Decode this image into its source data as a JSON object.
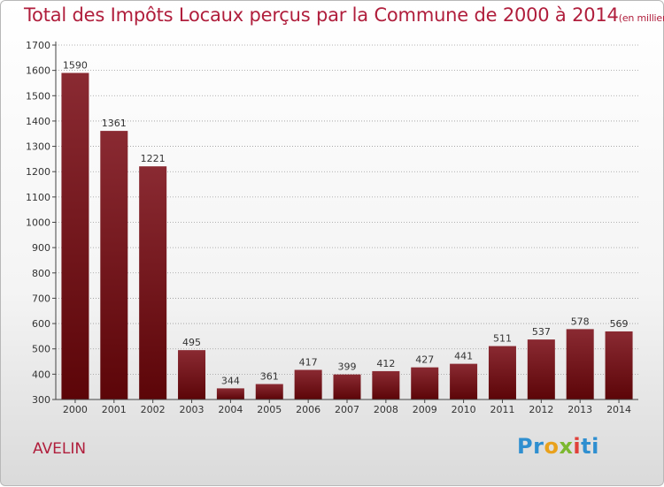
{
  "header": {
    "title": "Total des Impôts Locaux perçus par la Commune de 2000 à 2014",
    "unit": "(en milliers d'€)"
  },
  "footer": {
    "commune": "AVELIN",
    "brand_parts": [
      "Pr",
      "o",
      "x",
      "i",
      "ti"
    ]
  },
  "colors": {
    "accent": "#b01e3c",
    "bar_top": "#8a2a32",
    "bar_bottom": "#5c0508"
  },
  "chart_data": {
    "type": "bar",
    "title": "Total des Impôts Locaux perçus par la Commune de 2000 à 2014",
    "ylabel": "en milliers d'€",
    "xlabel": "",
    "categories": [
      "2000",
      "2001",
      "2002",
      "2003",
      "2004",
      "2005",
      "2006",
      "2007",
      "2008",
      "2009",
      "2010",
      "2011",
      "2012",
      "2013",
      "2014"
    ],
    "values": [
      1590,
      1361,
      1221,
      495,
      344,
      361,
      417,
      399,
      412,
      427,
      441,
      511,
      537,
      578,
      569
    ],
    "ylim": [
      300,
      1700
    ],
    "yticks": [
      300,
      400,
      500,
      600,
      700,
      800,
      900,
      1000,
      1100,
      1200,
      1300,
      1400,
      1500,
      1600,
      1700
    ],
    "grid": "horizontal-dotted",
    "legend": "none"
  }
}
